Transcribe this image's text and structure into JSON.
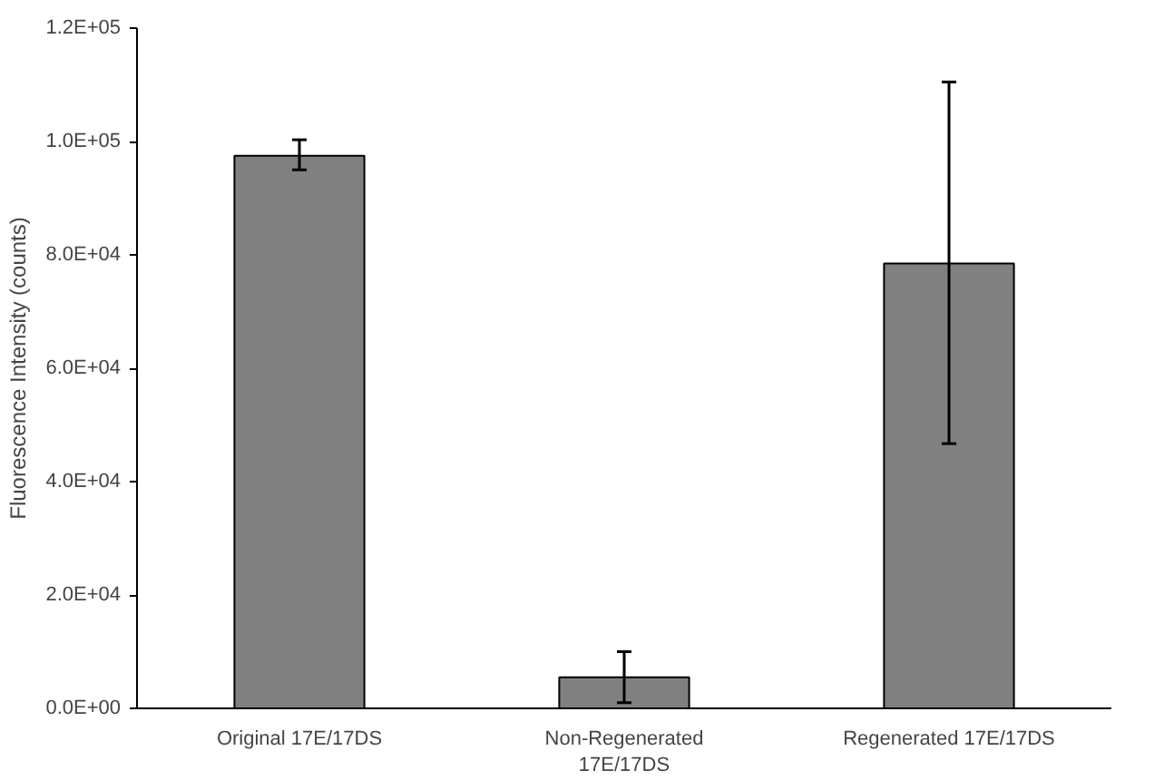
{
  "chart_data": {
    "type": "bar",
    "ylabel": "Fluorescence Intensity (counts)",
    "categories": [
      "Original 17E/17DS",
      "Non-Regenerated\n17E/17DS",
      "Regenerated 17E/17DS"
    ],
    "values": [
      97500,
      5500,
      78500
    ],
    "errors": [
      [
        95000,
        100300
      ],
      [
        1000,
        10000
      ],
      [
        46700,
        110500
      ]
    ],
    "color": "#808080",
    "ylim": [
      0,
      120000
    ],
    "yticks": [
      {
        "value": 0,
        "label": "0.0E+00"
      },
      {
        "value": 20000,
        "label": "2.0E+04"
      },
      {
        "value": 40000,
        "label": "4.0E+04"
      },
      {
        "value": 60000,
        "label": "6.0E+04"
      },
      {
        "value": 80000,
        "label": "8.0E+04"
      },
      {
        "value": 100000,
        "label": "1.0E+05"
      },
      {
        "value": 120000,
        "label": "1.2E+05"
      }
    ],
    "grid": false
  }
}
